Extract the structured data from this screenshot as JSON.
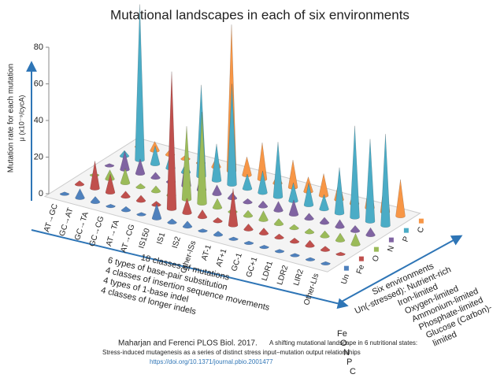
{
  "chart_data": {
    "type": "cone3d",
    "title": "Mutational landscapes in each of six environments",
    "y_label": [
      "Mutation rate for each mutation",
      "μ (x10⁻⁹/cycA)"
    ],
    "categories": [
      "AT→GC",
      "GC→AT",
      "GC→TA",
      "GC→CG",
      "AT→TA",
      "AT→CG",
      "IS150",
      "IS1",
      "IS2",
      "Other-ISs",
      "AT-1",
      "AT+1",
      "GC-1",
      "GC+1",
      "LDR1",
      "LDR2",
      "LIR2",
      "Other-LIs"
    ],
    "series": [
      {
        "name": "Un",
        "color": "#4f81bd",
        "values": [
          1,
          5,
          3,
          1,
          2,
          1,
          8,
          2,
          3,
          1,
          2,
          1,
          1,
          1,
          1,
          1,
          1,
          1
        ]
      },
      {
        "name": "Fe",
        "color": "#c0504d",
        "values": [
          2,
          15,
          10,
          3,
          3,
          2,
          75,
          8,
          4,
          2,
          20,
          3,
          3,
          2,
          2,
          3,
          2,
          1
        ]
      },
      {
        "name": "O",
        "color": "#9bbb59",
        "values": [
          1,
          5,
          8,
          2,
          3,
          4,
          40,
          50,
          5,
          2,
          3,
          5,
          3,
          2,
          2,
          3,
          4,
          6
        ]
      },
      {
        "name": "N",
        "color": "#8064a2",
        "values": [
          1,
          10,
          8,
          3,
          2,
          18,
          10,
          5,
          3,
          2,
          3,
          5,
          8,
          3,
          3,
          4,
          3,
          4
        ]
      },
      {
        "name": "P",
        "color": "#4bacc6",
        "values": [
          3,
          85,
          10,
          8,
          5,
          50,
          20,
          55,
          8,
          12,
          30,
          10,
          12,
          8,
          25,
          50,
          45,
          50
        ]
      },
      {
        "name": "C",
        "color": "#f79646",
        "values": [
          1,
          5,
          3,
          2,
          2,
          5,
          80,
          10,
          20,
          5,
          15,
          8,
          12,
          10,
          8,
          15,
          20,
          20
        ]
      }
    ],
    "ylim": [
      0,
      80
    ],
    "yticks": [
      0,
      20,
      40,
      60,
      80
    ],
    "category_notes": [
      "18 classes of mutations",
      "6 types of base-pair substitution",
      "4 classes of insertion sequence movements",
      "4 types of 1-base indel",
      "4 classes of longer indels"
    ],
    "environment_title": "Six environments",
    "environment_notes": [
      "Un(-stressed): Nutrient-rich",
      "Iron-limited",
      "Oxygen-limited",
      "Ammonium-limited",
      "Phosphate-limited",
      "Glucose (Carbon)-",
      "limited"
    ],
    "environment_codes": [
      "Fe",
      "O",
      "N",
      "P",
      "C"
    ],
    "source": {
      "authors": "Maharjan and Ferenci  PLOS Biol. 2017.",
      "title": "A shifting mutational landscape in 6 nutritional states:",
      "subtitle": "Stress-induced mutagenesis as a series of distinct stress input–mutation output relationships",
      "url": "https://doi.org/10.1371/journal.pbio.2001477"
    }
  }
}
